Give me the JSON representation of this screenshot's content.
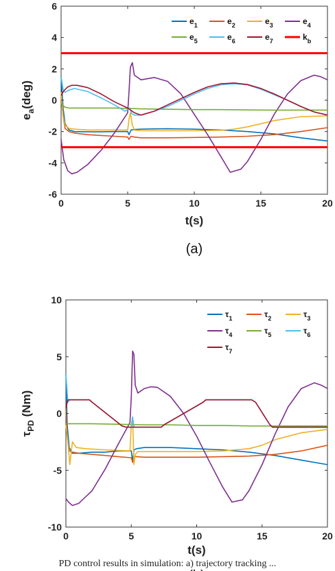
{
  "chart_data": [
    {
      "id": "a",
      "type": "line",
      "subfigure_label": "(a)",
      "xlabel": "t(s)",
      "ylabel": "e_a(deg)",
      "ylabel_main": "e",
      "ylabel_sub": "a",
      "ylabel_rest": "(deg)",
      "xlim": [
        0,
        20
      ],
      "ylim": [
        -6,
        6
      ],
      "xticks": [
        "0",
        "5",
        "10",
        "15",
        "20"
      ],
      "yticks": [
        "-6",
        "-4",
        "-2",
        "0",
        "2",
        "4",
        "6"
      ],
      "grid": false,
      "legend_position": "top-right",
      "series": [
        {
          "name": "e1",
          "label_main": "e",
          "label_sub": "1",
          "color": "#0072BD",
          "x": [
            0,
            0.15,
            0.3,
            0.6,
            1,
            2,
            3,
            4,
            5,
            5.1,
            5.25,
            5.5,
            6,
            7,
            8,
            10,
            12,
            14,
            16,
            18,
            20
          ],
          "y": [
            1.5,
            -0.5,
            -1.5,
            -1.9,
            -2.0,
            -2.02,
            -2.02,
            -2.0,
            -2.0,
            -2.2,
            -1.9,
            -1.87,
            -1.85,
            -1.83,
            -1.82,
            -1.85,
            -1.9,
            -2.0,
            -2.15,
            -2.4,
            -2.6
          ]
        },
        {
          "name": "e2",
          "label_main": "e",
          "label_sub": "2",
          "color": "#D95319",
          "x": [
            0,
            0.15,
            0.3,
            0.6,
            1,
            2,
            3,
            4,
            5,
            5.1,
            5.25,
            5.5,
            6,
            8,
            10,
            12,
            14,
            16,
            18,
            20
          ],
          "y": [
            0.2,
            -1.0,
            -1.8,
            -2.0,
            -2.1,
            -2.2,
            -2.25,
            -2.3,
            -2.35,
            -2.5,
            -2.3,
            -2.35,
            -2.4,
            -2.4,
            -2.38,
            -2.35,
            -2.3,
            -2.2,
            -2.0,
            -1.75
          ]
        },
        {
          "name": "e3",
          "label_main": "e",
          "label_sub": "3",
          "color": "#EDB120",
          "x": [
            0,
            0.15,
            0.3,
            0.6,
            1,
            2,
            3,
            4,
            5,
            5.1,
            5.2,
            5.35,
            5.5,
            6,
            8,
            10,
            12,
            13,
            14,
            16,
            18,
            20
          ],
          "y": [
            0.5,
            -1.0,
            -1.6,
            -1.8,
            -1.85,
            -1.9,
            -1.9,
            -1.9,
            -1.9,
            -1.2,
            -0.8,
            -1.6,
            -1.9,
            -1.95,
            -1.95,
            -1.95,
            -1.92,
            -1.85,
            -1.7,
            -1.3,
            -1.05,
            -1.0
          ]
        },
        {
          "name": "e4",
          "label_main": "e",
          "label_sub": "4",
          "color": "#7E2F8E",
          "x": [
            0,
            0.2,
            0.5,
            0.8,
            1.2,
            2,
            3,
            4,
            5,
            5.1,
            5.2,
            5.35,
            5.5,
            6,
            7,
            8,
            9,
            10,
            11,
            12,
            12.7,
            13.5,
            14,
            15,
            16,
            17,
            18,
            19,
            19.5,
            20
          ],
          "y": [
            -2.5,
            -3.8,
            -4.5,
            -4.7,
            -4.6,
            -4.1,
            -3.2,
            -2.1,
            -0.8,
            0.5,
            2.1,
            2.4,
            1.6,
            1.3,
            1.45,
            1.2,
            0.4,
            -0.9,
            -2.2,
            -3.6,
            -4.6,
            -4.4,
            -3.9,
            -2.5,
            -0.9,
            0.4,
            1.25,
            1.6,
            1.5,
            1.3
          ]
        },
        {
          "name": "e5",
          "label_main": "e",
          "label_sub": "5",
          "color": "#77AC30",
          "x": [
            0,
            0.3,
            0.6,
            1,
            2,
            4,
            6,
            8,
            10,
            12,
            14,
            16,
            18,
            20
          ],
          "y": [
            -0.2,
            -0.45,
            -0.5,
            -0.5,
            -0.5,
            -0.5,
            -0.55,
            -0.58,
            -0.6,
            -0.6,
            -0.62,
            -0.63,
            -0.63,
            -0.63
          ]
        },
        {
          "name": "e6",
          "label_main": "e",
          "label_sub": "6",
          "color": "#4DBEEE",
          "x": [
            0,
            0.15,
            0.3,
            0.6,
            1,
            2,
            3,
            4,
            4.8,
            5.0,
            5.15,
            5.3,
            5.5,
            6,
            7,
            8,
            9,
            10,
            11,
            12,
            13,
            14,
            15,
            16,
            17,
            18,
            19,
            20
          ],
          "y": [
            1.5,
            0.7,
            0.5,
            0.65,
            0.75,
            0.55,
            0.15,
            -0.3,
            -0.7,
            -0.6,
            -0.5,
            -0.85,
            -0.95,
            -0.95,
            -0.7,
            -0.4,
            0.0,
            0.4,
            0.75,
            0.98,
            1.05,
            0.98,
            0.7,
            0.35,
            0.0,
            -0.4,
            -0.75,
            -0.95
          ]
        },
        {
          "name": "e7",
          "label_main": "e",
          "label_sub": "7",
          "color": "#A2142F",
          "x": [
            0,
            0.2,
            0.5,
            0.8,
            1.2,
            2,
            3,
            4,
            5,
            5.5,
            6,
            7,
            8,
            9,
            10,
            11,
            12,
            13,
            14,
            15,
            16,
            17,
            18,
            19,
            20
          ],
          "y": [
            0.3,
            0.6,
            0.85,
            0.95,
            0.95,
            0.8,
            0.4,
            -0.1,
            -0.5,
            -0.8,
            -0.95,
            -0.7,
            -0.3,
            0.1,
            0.5,
            0.85,
            1.05,
            1.1,
            1.0,
            0.75,
            0.4,
            0.0,
            -0.4,
            -0.75,
            -0.95
          ]
        },
        {
          "name": "kb",
          "label_main": "k",
          "label_sub": "b",
          "color": "#FF0000",
          "bold": true,
          "x": [
            0,
            20
          ],
          "y": [
            3,
            3
          ]
        },
        {
          "name": "kb_lower",
          "color": "#FF0000",
          "bold": true,
          "legend": false,
          "x": [
            0,
            20
          ],
          "y": [
            -3,
            -3
          ]
        }
      ]
    },
    {
      "id": "b",
      "type": "line",
      "subfigure_label": "(b)",
      "xlabel": "t(s)",
      "ylabel": "τ_PD (Nm)",
      "ylabel_main": "τ",
      "ylabel_sub": "PD",
      "ylabel_rest": " (Nm)",
      "xlim": [
        0,
        20
      ],
      "ylim": [
        -10,
        10
      ],
      "xticks": [
        "0",
        "5",
        "10",
        "15",
        "20"
      ],
      "yticks": [
        "-10",
        "-5",
        "0",
        "5",
        "10"
      ],
      "grid": false,
      "legend_position": "top-right",
      "series": [
        {
          "name": "τ1",
          "label_main": "τ",
          "label_sub": "1",
          "color": "#0072BD",
          "x": [
            0,
            0.1,
            0.25,
            0.5,
            1,
            2,
            3,
            4,
            5,
            5.1,
            5.2,
            5.4,
            6,
            8,
            10,
            12,
            14,
            16,
            18,
            20
          ],
          "y": [
            3.5,
            -1.0,
            -3.0,
            -3.5,
            -3.5,
            -3.4,
            -3.4,
            -3.3,
            -3.3,
            -4.3,
            -3.2,
            -3.1,
            -3.0,
            -3.0,
            -3.1,
            -3.2,
            -3.4,
            -3.7,
            -4.1,
            -4.5
          ]
        },
        {
          "name": "τ2",
          "label_main": "τ",
          "label_sub": "2",
          "color": "#D95319",
          "x": [
            0,
            0.1,
            0.25,
            0.5,
            1,
            2,
            3,
            4,
            5,
            5.1,
            5.2,
            5.4,
            6,
            8,
            10,
            12,
            14,
            16,
            18,
            20
          ],
          "y": [
            0.5,
            -2.0,
            -3.3,
            -3.4,
            -3.5,
            -3.6,
            -3.7,
            -3.8,
            -3.9,
            -4.3,
            -3.8,
            -3.8,
            -3.85,
            -3.85,
            -3.85,
            -3.8,
            -3.75,
            -3.6,
            -3.3,
            -2.8
          ]
        },
        {
          "name": "τ3",
          "label_main": "τ",
          "label_sub": "3",
          "color": "#EDB120",
          "x": [
            0,
            0.15,
            0.3,
            0.5,
            0.8,
            1.5,
            3,
            4.9,
            5.0,
            5.1,
            5.2,
            5.3,
            5.5,
            6,
            8,
            10,
            12,
            14,
            15,
            16,
            18,
            20
          ],
          "y": [
            -1.0,
            -2.5,
            -4.5,
            -2.5,
            -3.0,
            -3.1,
            -3.2,
            -3.3,
            -1.0,
            -0.3,
            -4.5,
            -3.6,
            -3.35,
            -3.35,
            -3.35,
            -3.35,
            -3.3,
            -3.1,
            -2.8,
            -2.3,
            -1.7,
            -1.4
          ]
        },
        {
          "name": "τ4",
          "label_main": "τ",
          "label_sub": "4",
          "color": "#7E2F8E",
          "x": [
            0,
            0.2,
            0.5,
            1,
            2,
            3,
            4,
            4.9,
            5.0,
            5.1,
            5.2,
            5.3,
            5.5,
            6,
            6.5,
            7,
            8,
            9,
            10,
            11,
            12,
            12.7,
            13.5,
            14,
            15,
            16,
            17,
            18,
            19,
            19.5,
            20
          ],
          "y": [
            -7.5,
            -7.8,
            -8.1,
            -7.9,
            -6.8,
            -4.9,
            -2.7,
            -0.8,
            1.5,
            5.5,
            5.2,
            2.5,
            1.8,
            2.2,
            2.35,
            2.3,
            1.5,
            0.0,
            -2.0,
            -4.3,
            -6.5,
            -7.8,
            -7.6,
            -6.8,
            -4.5,
            -1.8,
            0.6,
            2.2,
            2.7,
            2.5,
            2.2
          ]
        },
        {
          "name": "τ5",
          "label_main": "τ",
          "label_sub": "5",
          "color": "#77AC30",
          "x": [
            0,
            0.3,
            0.6,
            1,
            2,
            4,
            6,
            8,
            10,
            12,
            14,
            16,
            18,
            20
          ],
          "y": [
            -0.9,
            -0.9,
            -0.9,
            -0.9,
            -0.9,
            -0.95,
            -1.0,
            -1.0,
            -1.05,
            -1.05,
            -1.1,
            -1.1,
            -1.1,
            -1.1
          ]
        },
        {
          "name": "τ6",
          "label_main": "τ",
          "label_sub": "6",
          "color": "#4DBEEE",
          "x": [
            0,
            0.15,
            0.3,
            0.5,
            1.8,
            2.0,
            4.3,
            4.6,
            5.0,
            5.1,
            5.2,
            5.4,
            7.3,
            7.5,
            10.5,
            10.7,
            14.2,
            14.5,
            15.6,
            15.8,
            20
          ],
          "y": [
            3.5,
            1.0,
            1.2,
            1.2,
            1.2,
            1.0,
            -1.1,
            -1.2,
            -1.2,
            -0.3,
            -1.2,
            -1.2,
            -1.2,
            -1.0,
            1.0,
            1.2,
            1.2,
            1.0,
            -1.0,
            -1.2,
            -1.2
          ]
        },
        {
          "name": "τ7",
          "label_main": "τ",
          "label_sub": "7",
          "color": "#A2142F",
          "x": [
            0,
            0.15,
            0.3,
            0.5,
            1.8,
            2.0,
            4.3,
            4.6,
            7.3,
            7.5,
            10.5,
            10.7,
            14.2,
            14.5,
            15.6,
            15.8,
            20
          ],
          "y": [
            0.5,
            1.2,
            1.2,
            1.2,
            1.2,
            1.0,
            -1.1,
            -1.2,
            -1.2,
            -1.0,
            1.0,
            1.2,
            1.2,
            1.0,
            -1.0,
            -1.2,
            -1.2
          ]
        }
      ]
    }
  ],
  "caption": "PD control results in simulation: a) trajectory tracking ..."
}
